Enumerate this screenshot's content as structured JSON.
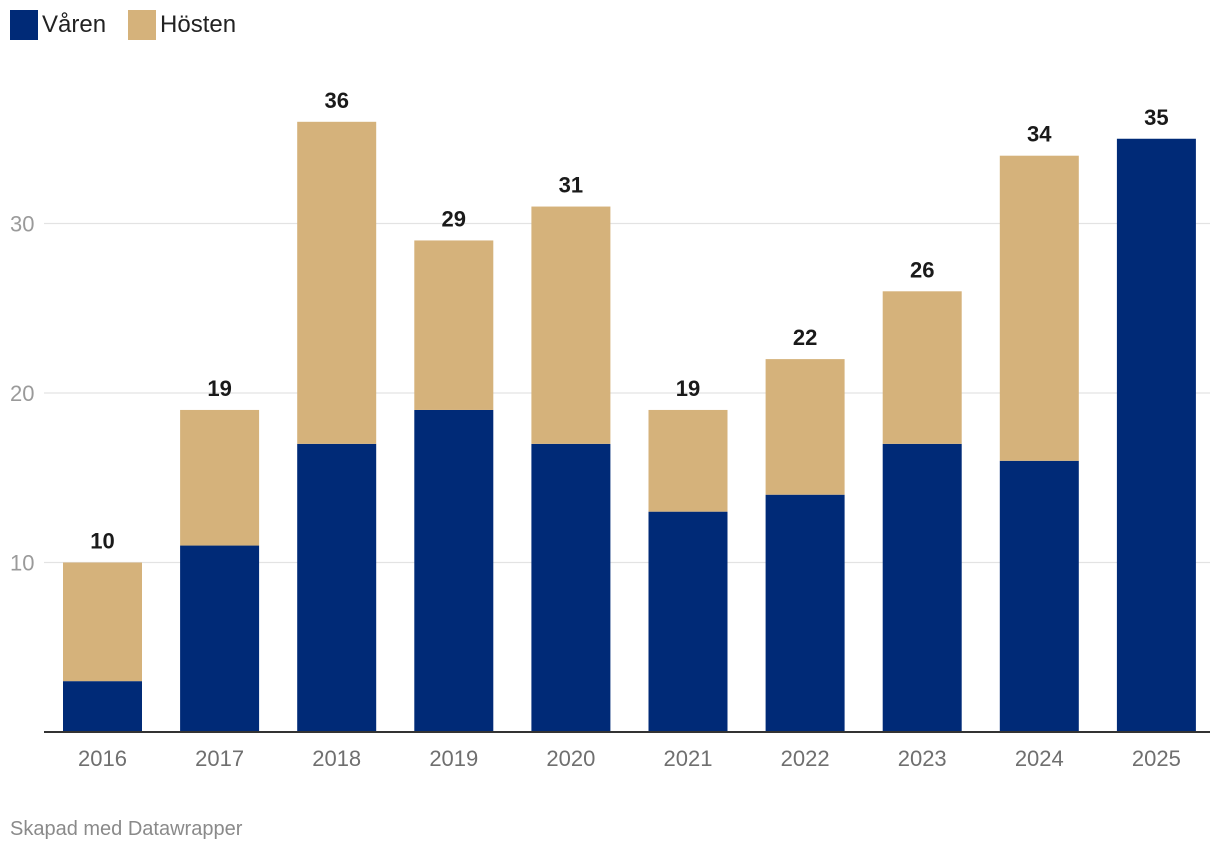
{
  "chart_data": {
    "type": "bar",
    "stacked": true,
    "categories": [
      "2016",
      "2017",
      "2018",
      "2019",
      "2020",
      "2021",
      "2022",
      "2023",
      "2024",
      "2025"
    ],
    "series": [
      {
        "name": "Våren",
        "color": "#002a77",
        "values": [
          3,
          11,
          17,
          19,
          17,
          13,
          14,
          17,
          16,
          35
        ]
      },
      {
        "name": "Hösten",
        "color": "#d5b27b",
        "values": [
          7,
          8,
          19,
          10,
          14,
          6,
          8,
          9,
          18,
          0
        ]
      }
    ],
    "totals": [
      10,
      19,
      36,
      29,
      31,
      19,
      22,
      26,
      34,
      35
    ],
    "ylim": [
      0,
      40
    ],
    "yticks": [
      10,
      20,
      30
    ],
    "grid": true,
    "legend_position": "top-left"
  },
  "legend": {
    "items": [
      {
        "label": "Våren",
        "color": "#002a77"
      },
      {
        "label": "Hösten",
        "color": "#d5b27b"
      }
    ]
  },
  "footer": {
    "credit": "Skapad med Datawrapper"
  }
}
